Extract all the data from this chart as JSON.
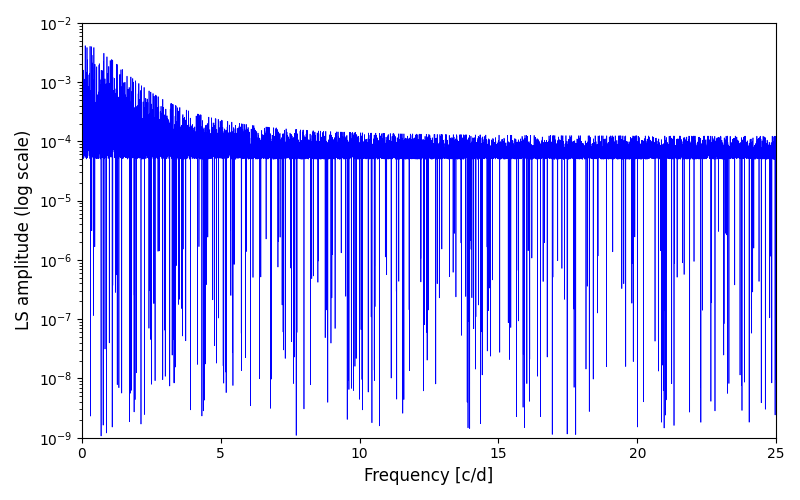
{
  "xlabel": "Frequency [c/d]",
  "ylabel": "LS amplitude (log scale)",
  "xlim": [
    0,
    25
  ],
  "ylim": [
    1e-09,
    0.01
  ],
  "line_color": "#0000ff",
  "line_width": 0.5,
  "background_color": "#ffffff",
  "seed": 42,
  "n_points": 15000,
  "freq_max": 25.0
}
